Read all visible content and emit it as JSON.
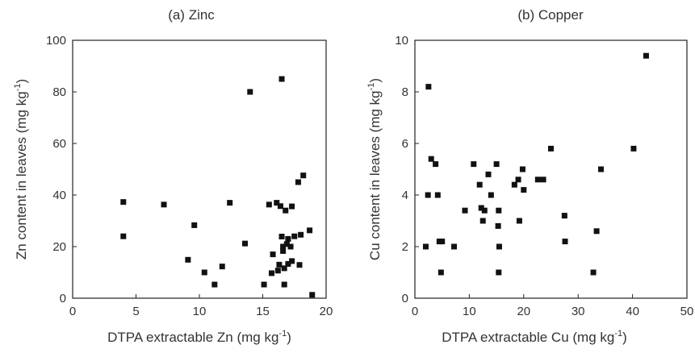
{
  "chart_data": [
    {
      "type": "scatter",
      "title": "(a) Zinc",
      "xlabel": "DTPA extractable Zn (mg kg",
      "xlabel_sup": "-1",
      "xlabel_end": ")",
      "ylabel": "Zn content in leaves (mg kg",
      "ylabel_sup": "-1",
      "ylabel_end": ")",
      "xlim": [
        0,
        20
      ],
      "ylim": [
        0,
        100
      ],
      "xticks": [
        0,
        5,
        10,
        15,
        20
      ],
      "yticks": [
        0,
        20,
        40,
        60,
        80,
        100
      ],
      "xtick_labels": [
        "0",
        "5",
        "10",
        "15",
        "20"
      ],
      "ytick_labels": [
        "0",
        "20",
        "40",
        "60",
        "80",
        "100"
      ],
      "grid": false,
      "marker_color": "#111111",
      "points": [
        [
          4.0,
          37.3
        ],
        [
          4.0,
          24.0
        ],
        [
          7.2,
          36.3
        ],
        [
          9.6,
          28.3
        ],
        [
          9.1,
          14.9
        ],
        [
          10.4,
          10.0
        ],
        [
          11.2,
          5.3
        ],
        [
          11.8,
          12.3
        ],
        [
          12.4,
          37.0
        ],
        [
          13.6,
          21.2
        ],
        [
          14.0,
          80.0
        ],
        [
          15.1,
          5.3
        ],
        [
          15.5,
          36.3
        ],
        [
          15.7,
          9.7
        ],
        [
          15.8,
          17.0
        ],
        [
          16.1,
          37.0
        ],
        [
          16.2,
          10.7
        ],
        [
          16.3,
          13.0
        ],
        [
          16.4,
          35.7
        ],
        [
          16.5,
          85.0
        ],
        [
          16.5,
          23.9
        ],
        [
          16.6,
          20.0
        ],
        [
          16.6,
          18.3
        ],
        [
          16.7,
          5.3
        ],
        [
          16.7,
          11.6
        ],
        [
          16.8,
          34.0
        ],
        [
          16.9,
          21.0
        ],
        [
          17.0,
          23.0
        ],
        [
          17.0,
          13.3
        ],
        [
          17.2,
          20.0
        ],
        [
          17.3,
          35.6
        ],
        [
          17.3,
          14.4
        ],
        [
          17.5,
          24.0
        ],
        [
          17.8,
          45.0
        ],
        [
          17.9,
          12.9
        ],
        [
          18.0,
          24.6
        ],
        [
          18.2,
          47.6
        ],
        [
          18.7,
          26.3
        ],
        [
          18.9,
          1.3
        ]
      ]
    },
    {
      "type": "scatter",
      "title": "(b) Copper",
      "xlabel": "DTPA extractable Cu (mg kg",
      "xlabel_sup": "-1",
      "xlabel_end": ")",
      "ylabel": "Cu content in leaves (mg kg",
      "ylabel_sup": "-1",
      "ylabel_end": ")",
      "xlim": [
        0,
        50
      ],
      "ylim": [
        0,
        10
      ],
      "xticks": [
        0,
        10,
        20,
        30,
        40,
        50
      ],
      "yticks": [
        0,
        2,
        4,
        6,
        8,
        10
      ],
      "xtick_labels": [
        "0",
        "10",
        "20",
        "30",
        "40",
        "50"
      ],
      "ytick_labels": [
        "0",
        "2",
        "4",
        "6",
        "8",
        "10"
      ],
      "grid": false,
      "marker_color": "#111111",
      "points": [
        [
          2.0,
          2.0
        ],
        [
          2.4,
          4.0
        ],
        [
          2.5,
          8.2
        ],
        [
          3.0,
          5.4
        ],
        [
          3.8,
          5.2
        ],
        [
          4.2,
          4.0
        ],
        [
          4.5,
          2.2
        ],
        [
          5.0,
          2.2
        ],
        [
          4.8,
          1.0
        ],
        [
          7.2,
          2.0
        ],
        [
          9.2,
          3.4
        ],
        [
          10.8,
          5.2
        ],
        [
          11.9,
          4.4
        ],
        [
          12.2,
          3.5
        ],
        [
          12.5,
          3.0
        ],
        [
          12.8,
          3.4
        ],
        [
          13.5,
          4.8
        ],
        [
          14.0,
          4.0
        ],
        [
          15.0,
          5.2
        ],
        [
          15.4,
          3.4
        ],
        [
          15.3,
          2.8
        ],
        [
          15.5,
          2.0
        ],
        [
          15.4,
          1.0
        ],
        [
          18.3,
          4.4
        ],
        [
          19.0,
          4.6
        ],
        [
          19.2,
          3.0
        ],
        [
          19.8,
          5.0
        ],
        [
          20.0,
          4.2
        ],
        [
          22.6,
          4.6
        ],
        [
          23.6,
          4.6
        ],
        [
          25.0,
          5.8
        ],
        [
          27.5,
          3.2
        ],
        [
          27.6,
          2.2
        ],
        [
          32.8,
          1.0
        ],
        [
          33.4,
          2.6
        ],
        [
          34.2,
          5.0
        ],
        [
          40.2,
          5.8
        ],
        [
          42.5,
          9.4
        ]
      ]
    }
  ]
}
